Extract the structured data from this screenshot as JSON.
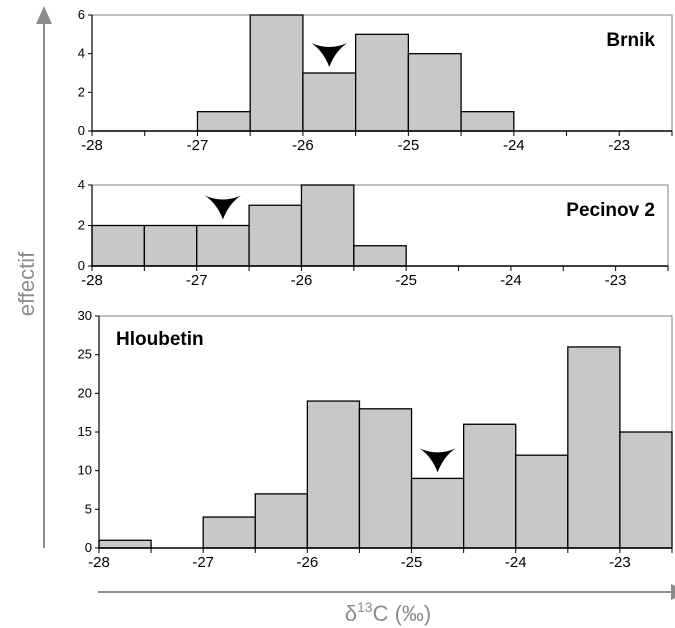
{
  "axis_color": "#8c8c8c",
  "bar_fill": "#c8c8c8",
  "bar_stroke": "#000000",
  "marker_color": "#000000",
  "ylabel": "effectif",
  "xlabel_delta": "δ",
  "xlabel_sup": "13",
  "xlabel_rest": "C (‰)",
  "chart_data": [
    {
      "type": "bar",
      "title": "Brnik",
      "xlim": [
        -28,
        -22.5
      ],
      "ylim": [
        0,
        6
      ],
      "y_ticks": [
        "0",
        "2",
        "4",
        "6"
      ],
      "x_ticks": [
        "-28",
        "-27",
        "-26",
        "-25",
        "-24",
        "-23"
      ],
      "bin_width": 0.5,
      "bin_starts": [
        -27.0,
        -26.5,
        -26.0,
        -25.5,
        -25.0,
        -24.5
      ],
      "values": [
        1,
        6,
        3,
        5,
        4,
        1
      ],
      "marker_x": -25.75,
      "grid": false
    },
    {
      "type": "bar",
      "title": "Pecinov 2",
      "xlim": [
        -28,
        -22.5
      ],
      "ylim": [
        0,
        4
      ],
      "y_ticks": [
        "0",
        "2",
        "4"
      ],
      "x_ticks": [
        "-28",
        "-27",
        "-26",
        "-25",
        "-24",
        "-23"
      ],
      "bin_width": 0.5,
      "bin_starts": [
        -28.0,
        -27.5,
        -27.0,
        -26.5,
        -26.0,
        -25.5
      ],
      "values": [
        2,
        2,
        2,
        3,
        4,
        1
      ],
      "marker_x": -26.75,
      "grid": false
    },
    {
      "type": "bar",
      "title": "Hloubetin",
      "xlim": [
        -28,
        -22.5
      ],
      "ylim": [
        0,
        30
      ],
      "y_ticks": [
        "0",
        "5",
        "10",
        "15",
        "20",
        "25",
        "30"
      ],
      "x_ticks": [
        "-28",
        "-27",
        "-26",
        "-25",
        "-24",
        "-23"
      ],
      "bin_width": 0.5,
      "bin_starts": [
        -28.0,
        -27.0,
        -26.5,
        -26.0,
        -25.5,
        -25.0,
        -24.5,
        -24.0,
        -23.5,
        -23.0
      ],
      "values": [
        1,
        4,
        7,
        19,
        18,
        9,
        16,
        12,
        26,
        15
      ],
      "marker_x": -24.75,
      "grid": false
    }
  ]
}
